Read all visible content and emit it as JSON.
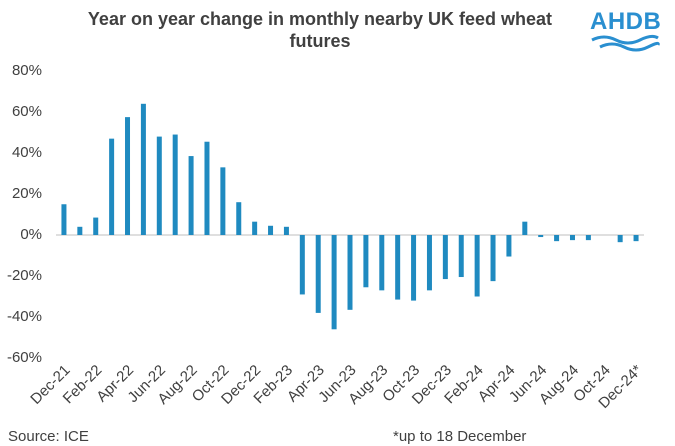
{
  "logo": "AHDB",
  "source": "Source: ICE",
  "footnote": "*up to 18 December",
  "chart_data": {
    "type": "bar",
    "title": "Year on year change in monthly nearby UK feed wheat futures",
    "categories": [
      "Dec-21",
      null,
      "Feb-22",
      null,
      "Apr-22",
      null,
      "Jun-22",
      null,
      "Aug-22",
      null,
      "Oct-22",
      null,
      "Dec-22",
      null,
      "Feb-23",
      null,
      "Apr-23",
      null,
      "Jun-23",
      null,
      "Aug-23",
      null,
      "Oct-23",
      null,
      "Dec-23",
      null,
      "Feb-24",
      null,
      "Apr-24",
      null,
      "Jun-24",
      null,
      "Aug-24",
      null,
      "Oct-24",
      null,
      "Dec-24*"
    ],
    "values": [
      15,
      4,
      8.5,
      47,
      57.5,
      64,
      48,
      49,
      38.5,
      45.5,
      33,
      16,
      6.5,
      4.5,
      4,
      -29,
      -38,
      -46,
      -36.5,
      -25.5,
      -27,
      -31.5,
      -32,
      -27,
      -21.5,
      -20.5,
      -30,
      -22.5,
      -10.5,
      6.5,
      -1,
      -3,
      -2.5,
      -2.5,
      0,
      -3.5,
      -3
    ],
    "color": "#1f8ac0",
    "ylim": [
      -60,
      80
    ],
    "yticks": [
      {
        "value": -60,
        "label": "-60%"
      },
      {
        "value": -40,
        "label": "-40%"
      },
      {
        "value": -20,
        "label": "-20%"
      },
      {
        "value": 0,
        "label": "0%"
      },
      {
        "value": 20,
        "label": "20%"
      },
      {
        "value": 40,
        "label": "40%"
      },
      {
        "value": 60,
        "label": "60%"
      },
      {
        "value": 80,
        "label": "80%"
      }
    ]
  }
}
